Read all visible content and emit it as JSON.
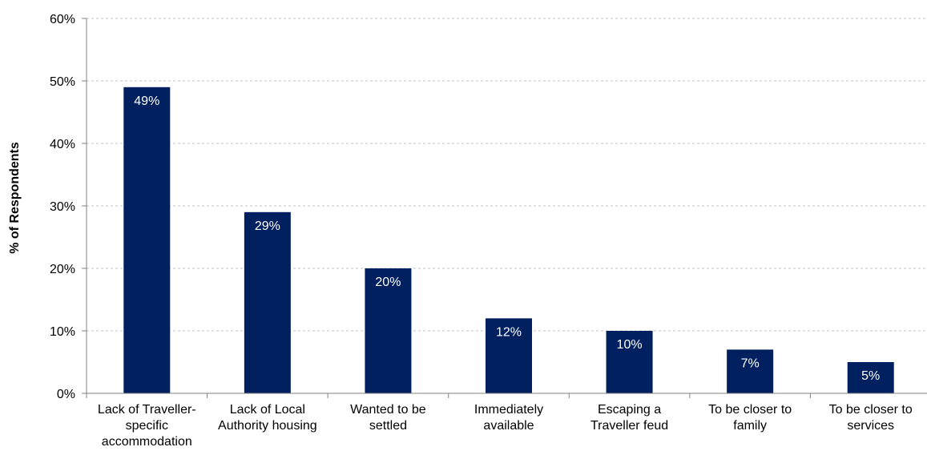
{
  "chart_data": {
    "type": "bar",
    "title": "",
    "xlabel": "",
    "ylabel": "% of Respondents",
    "ylim": [
      0,
      60
    ],
    "y_ticks": [
      "0%",
      "10%",
      "20%",
      "30%",
      "40%",
      "50%",
      "60%"
    ],
    "y_tick_values": [
      0,
      10,
      20,
      30,
      40,
      50,
      60
    ],
    "grid": true,
    "bar_color": "#002060",
    "categories": [
      [
        "Lack of Traveller-",
        "specific",
        "accommodation"
      ],
      [
        "Lack of Local",
        "Authority housing"
      ],
      [
        "Wanted to be",
        "settled"
      ],
      [
        "Immediately",
        "available"
      ],
      [
        "Escaping a",
        "Traveller feud"
      ],
      [
        "To be closer to",
        "family"
      ],
      [
        "To be closer to",
        "services"
      ]
    ],
    "values": [
      49,
      29,
      20,
      12,
      10,
      7,
      5
    ],
    "data_labels": [
      "49%",
      "29%",
      "20%",
      "12%",
      "10%",
      "7%",
      "5%"
    ]
  }
}
